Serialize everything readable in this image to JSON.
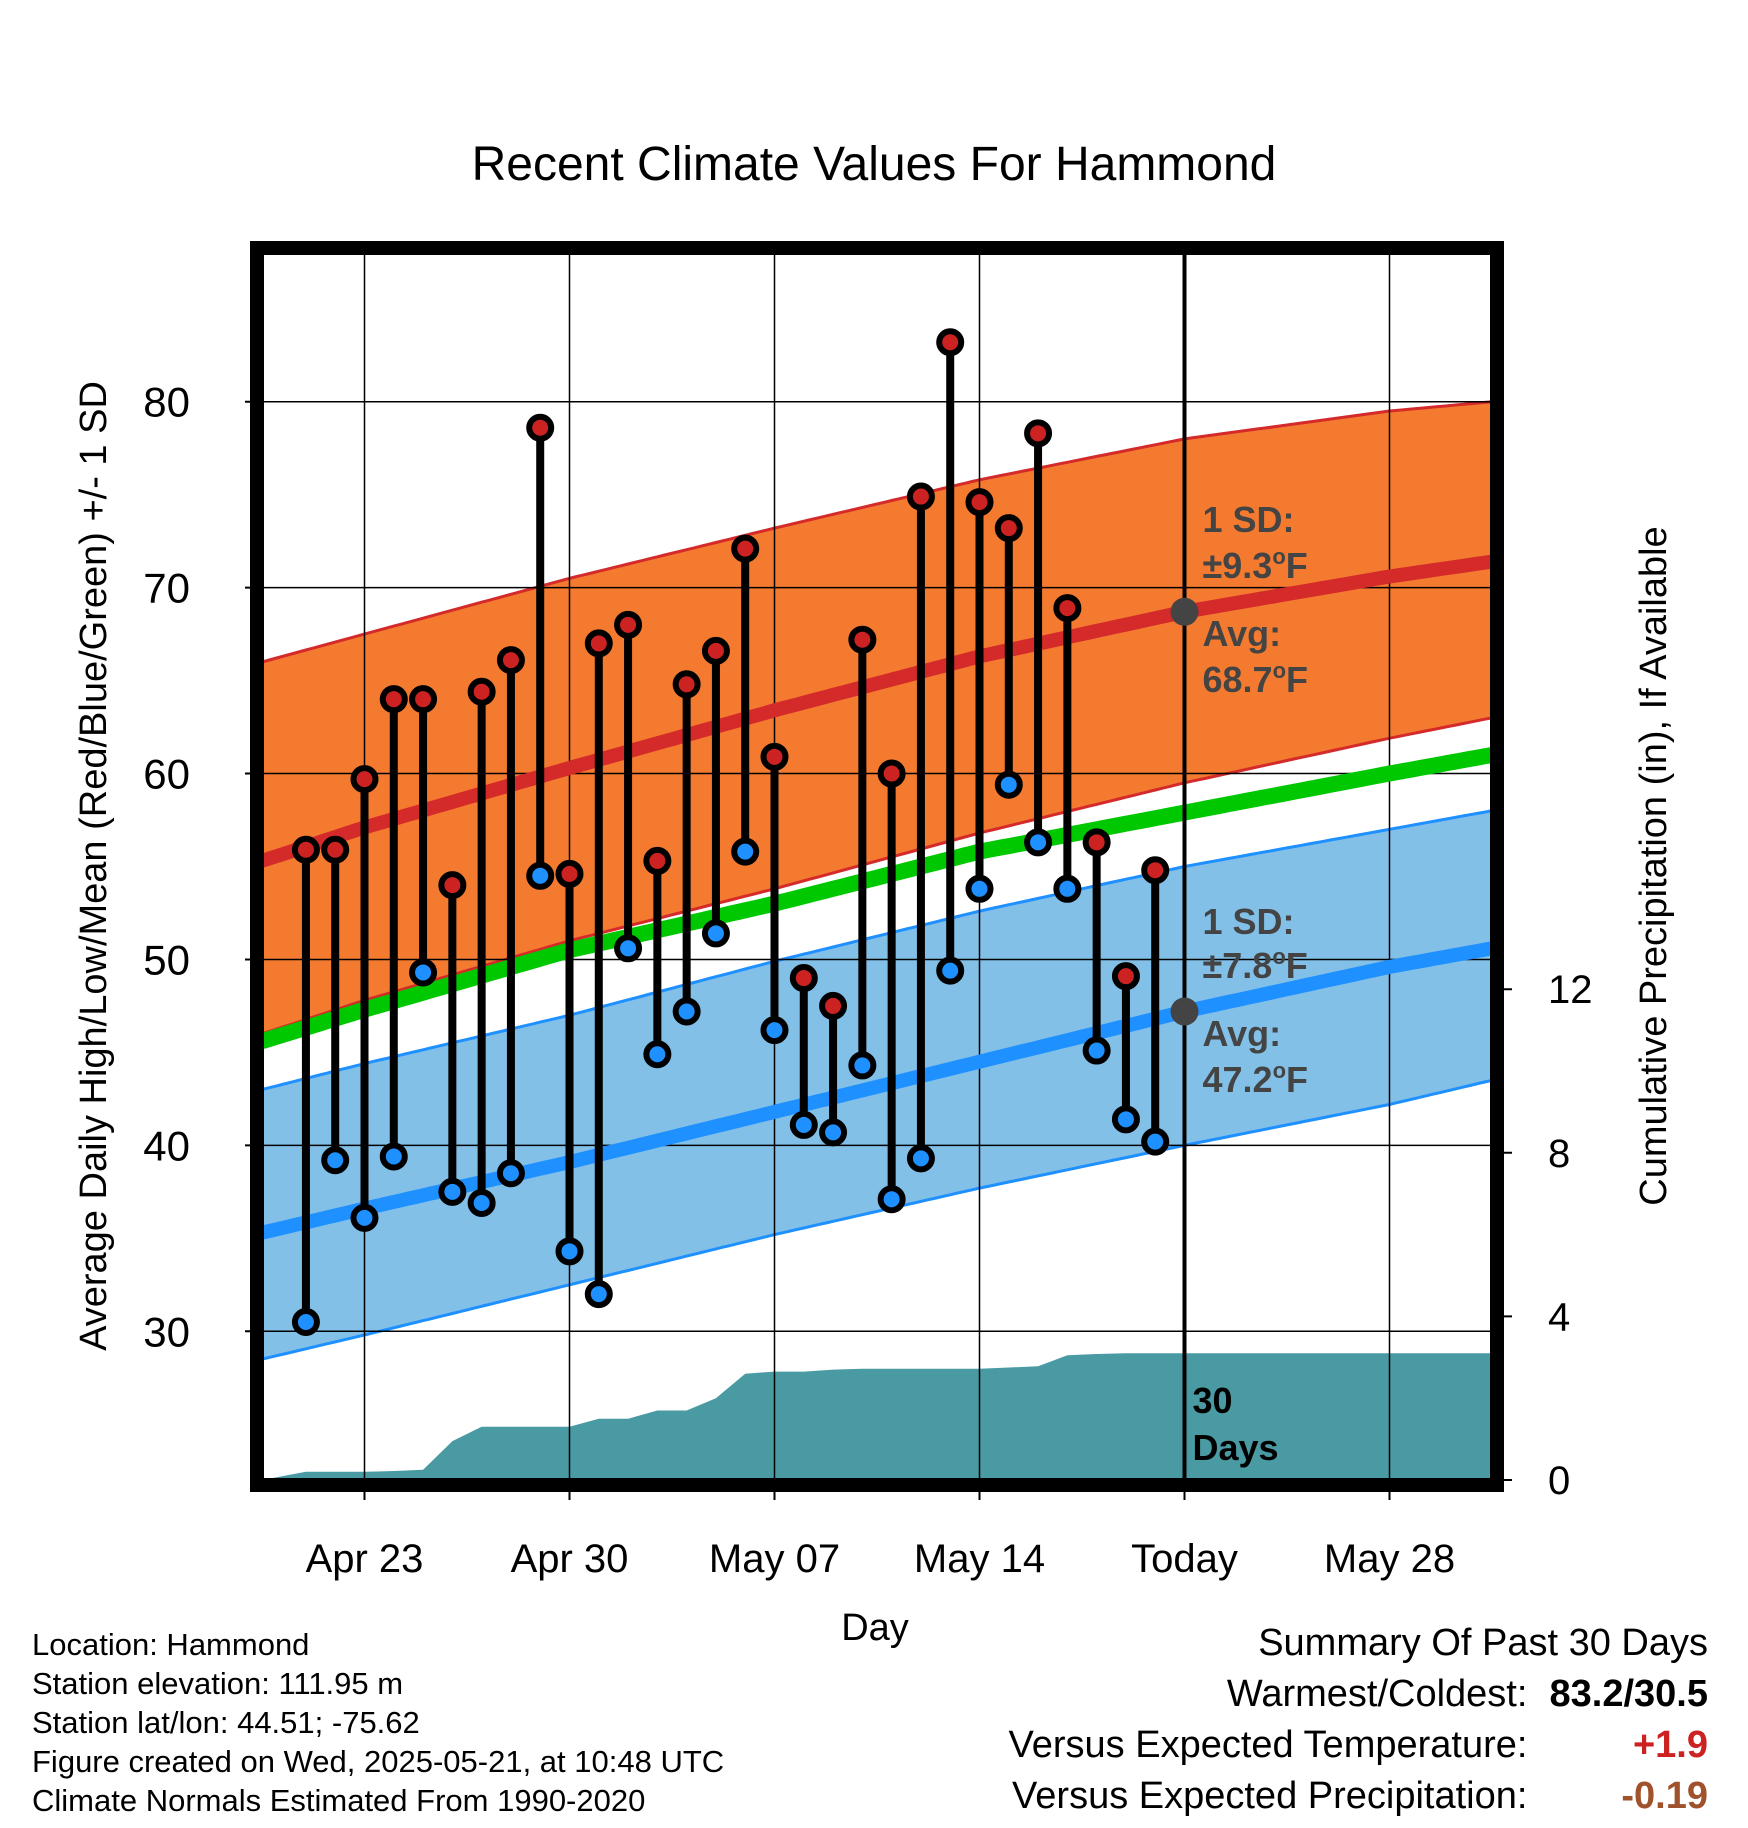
{
  "chart_data": {
    "type": "line",
    "title": "Recent Climate Values For Hammond",
    "xlabel": "Day",
    "ylabel": "Average Daily High/Low/Mean (Red/Blue/Green) +/- 1 SD",
    "y2label": "Cumulative Precipitation (in), If Available",
    "x_range_days": [
      -31.5,
      10.5
    ],
    "ylim": [
      22,
      88
    ],
    "y2lim": [
      0,
      30
    ],
    "yticks": [
      30,
      40,
      50,
      60,
      70,
      80
    ],
    "y2ticks": [
      0,
      4,
      8,
      12
    ],
    "xticks": [
      {
        "day": -28,
        "label": "Apr 23"
      },
      {
        "day": -21,
        "label": "Apr 30"
      },
      {
        "day": -14,
        "label": "May 07"
      },
      {
        "day": -7,
        "label": "May 14"
      },
      {
        "day": 0,
        "label": "Today"
      },
      {
        "day": 7,
        "label": "May 28"
      }
    ],
    "grid": true,
    "today_label": [
      "30",
      "Days"
    ],
    "normals": {
      "days": [
        -31.5,
        -28,
        -21,
        -14,
        -7,
        0,
        7,
        10.5
      ],
      "high_avg": [
        55.3,
        57.1,
        60.3,
        63.4,
        66.3,
        68.7,
        70.6,
        71.4
      ],
      "high_upper": [
        66.0,
        67.5,
        70.5,
        73.2,
        75.8,
        78.0,
        79.5,
        80.0
      ],
      "high_lower": [
        46.0,
        47.8,
        51.0,
        53.8,
        56.8,
        59.5,
        61.9,
        63.0
      ],
      "mean_avg": [
        45.6,
        47.3,
        50.5,
        53.0,
        55.8,
        57.9,
        60.0,
        61.0
      ],
      "low_avg": [
        35.3,
        36.6,
        39.1,
        41.8,
        44.5,
        47.2,
        49.6,
        50.6
      ],
      "low_upper": [
        43.0,
        44.4,
        47.0,
        49.9,
        52.6,
        55.0,
        57.0,
        58.0
      ],
      "low_lower": [
        28.5,
        29.8,
        32.5,
        35.2,
        37.7,
        40.0,
        42.2,
        43.5
      ]
    },
    "daily": {
      "days": [
        -30,
        -29,
        -28,
        -27,
        -26,
        -25,
        -24,
        -23,
        -22,
        -21,
        -20,
        -19,
        -18,
        -17,
        -16,
        -15,
        -14,
        -13,
        -12,
        -11,
        -10,
        -9,
        -8,
        -7,
        -6,
        -5,
        -4,
        -3,
        -2,
        -1
      ],
      "highs": [
        55.9,
        55.9,
        59.7,
        64.0,
        64.0,
        54.0,
        64.4,
        66.1,
        78.6,
        54.6,
        67.0,
        68.0,
        55.3,
        64.8,
        66.6,
        72.1,
        60.9,
        49.0,
        47.5,
        67.2,
        60.0,
        74.9,
        83.2,
        74.6,
        73.2,
        78.3,
        68.9,
        56.3,
        49.1,
        54.8
      ],
      "lows": [
        30.5,
        39.2,
        36.1,
        39.4,
        49.3,
        37.5,
        36.9,
        38.5,
        54.5,
        34.3,
        32.0,
        50.6,
        44.9,
        47.2,
        51.4,
        55.8,
        46.2,
        41.1,
        40.7,
        44.3,
        37.1,
        39.3,
        49.4,
        53.8,
        59.4,
        56.3,
        53.8,
        45.1,
        41.4,
        40.2
      ]
    },
    "precip": {
      "days": [
        -31.5,
        -30,
        -29,
        -28,
        -27,
        -26,
        -25,
        -24,
        -23,
        -22,
        -21,
        -20,
        -19,
        -18,
        -17,
        -16,
        -15,
        -14,
        -13,
        -12,
        -11,
        -10,
        -9,
        -8,
        -7,
        -6,
        -5,
        -4,
        -3,
        -2,
        -1,
        0,
        10.5
      ],
      "cumulative": [
        0.0,
        0.2,
        0.2,
        0.2,
        0.22,
        0.25,
        0.95,
        1.3,
        1.3,
        1.3,
        1.3,
        1.5,
        1.5,
        1.7,
        1.7,
        2.0,
        2.6,
        2.65,
        2.65,
        2.7,
        2.72,
        2.72,
        2.72,
        2.72,
        2.72,
        2.75,
        2.78,
        3.05,
        3.08,
        3.1,
        3.1,
        3.1,
        3.1
      ]
    },
    "annotations": {
      "high_sd_label": "1 SD:",
      "high_sd_value": "±9.3",
      "high_avg_label": "Avg:",
      "high_avg_value": "68.7",
      "low_sd_label": "1 SD:",
      "low_sd_value": "±7.8",
      "low_avg_label": "Avg:",
      "low_avg_value": "47.2",
      "unit_sup": "o",
      "unit_letter": "F",
      "today_high_avg": 68.7,
      "today_low_avg": 47.2
    },
    "colors": {
      "high_band": "#f47a30",
      "high_line": "#d42a2a",
      "low_band": "#82c0e8",
      "low_line": "#1e90ff",
      "mean_line": "#00c800",
      "precip": "#4a9aa4",
      "high_dot": "#cc2222",
      "low_dot": "#1e90ff",
      "annot_text": "#444444",
      "today_dot": "#444444"
    }
  },
  "info": {
    "location": "Location: Hammond",
    "elevation": "Station elevation: 111.95 m",
    "latlon": "Station lat/lon: 44.51; -75.62",
    "created": "Figure created on Wed, 2025-05-21, at 10:48 UTC",
    "normals": "Climate Normals Estimated From 1990-2020"
  },
  "summary": {
    "title": "Summary Of Past 30 Days",
    "warmest_coldest_label": "Warmest/Coldest:",
    "warmest_coldest_value": "83.2/30.5",
    "temp_label": "Versus Expected Temperature:",
    "temp_value": "+1.9",
    "temp_color": "#cc2222",
    "precip_label": "Versus Expected Precipitation:",
    "precip_value": "-0.19",
    "precip_color": "#a0522d"
  }
}
